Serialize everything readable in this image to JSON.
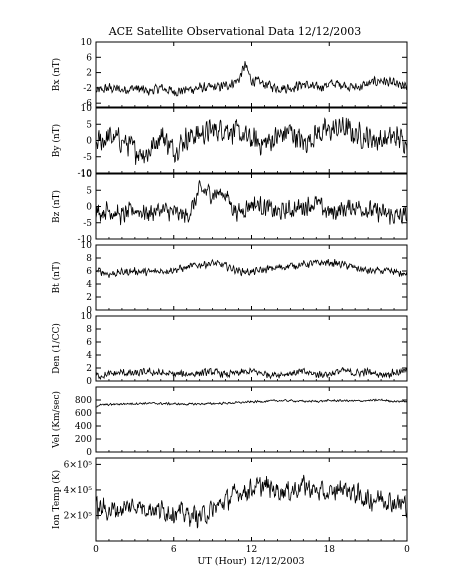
{
  "title": "ACE Satellite Observational Data   12/12/2003",
  "xlabel": "UT (Hour)  12/12/2003",
  "x_ticks": [
    "0",
    "6",
    "12",
    "18",
    "0"
  ],
  "chart_data": [
    {
      "type": "line",
      "ylabel": "Bx (nT)",
      "ylim": [
        -7,
        10
      ],
      "y_ticks": [
        "10",
        "6",
        "2",
        "-2",
        "-6"
      ],
      "y_tick_values": [
        10,
        6,
        2,
        -2,
        -6
      ],
      "x_hours": [
        0,
        1,
        2,
        3,
        4,
        5,
        6,
        7,
        8,
        9,
        10,
        11,
        11.5,
        12,
        13,
        14,
        15,
        16,
        17,
        18,
        19,
        20,
        21,
        22,
        23,
        24
      ],
      "values": [
        -3,
        -2,
        -2.5,
        -2,
        -3,
        -2,
        -3,
        -2.5,
        -2,
        -2,
        -1.5,
        0,
        4,
        0,
        -1,
        -2,
        -2,
        -1,
        -2,
        -1,
        -1,
        -2,
        -1,
        0,
        -1,
        -2
      ],
      "noise": 1.6
    },
    {
      "type": "line",
      "ylabel": "By (nT)",
      "ylim": [
        -10,
        10
      ],
      "y_ticks": [
        "10",
        "5",
        "0",
        "-5",
        "-10"
      ],
      "y_tick_values": [
        10,
        5,
        0,
        -5,
        -10
      ],
      "x_hours": [
        0,
        1,
        2,
        3,
        4,
        5,
        6,
        7,
        8,
        9,
        10,
        11,
        12,
        13,
        14,
        15,
        16,
        17,
        18,
        19,
        20,
        21,
        22,
        23,
        24
      ],
      "values": [
        -1,
        1,
        0,
        -3,
        -4,
        2,
        -3,
        1,
        2,
        3,
        4,
        2,
        0,
        -1,
        1,
        3,
        -1,
        2,
        3,
        4,
        2,
        1,
        0,
        1,
        0
      ],
      "noise": 4.5
    },
    {
      "type": "line",
      "ylabel": "Bz (nT)",
      "ylim": [
        -10,
        10
      ],
      "y_ticks": [
        "10",
        "5",
        "0",
        "-5",
        "-10"
      ],
      "y_tick_values": [
        10,
        5,
        0,
        -5,
        -10
      ],
      "x_hours": [
        0,
        1,
        2,
        3,
        4,
        5,
        6,
        7,
        7.5,
        8,
        9,
        10,
        10.5,
        11,
        12,
        13,
        14,
        15,
        16,
        17,
        18,
        19,
        20,
        21,
        22,
        23,
        24
      ],
      "values": [
        -2,
        -1,
        -3,
        -1,
        -2,
        -1,
        -2,
        -3,
        0,
        5,
        4,
        4,
        0,
        -2,
        1,
        0,
        -2,
        -1,
        0,
        1,
        -2,
        -1,
        0,
        -1,
        -2,
        -3,
        -3
      ],
      "noise": 3.5
    },
    {
      "type": "line",
      "ylabel": "Bt (nT)",
      "ylim": [
        0,
        10
      ],
      "y_ticks": [
        "10",
        "8",
        "6",
        "4",
        "2",
        "0"
      ],
      "y_tick_values": [
        10,
        8,
        6,
        4,
        2,
        0
      ],
      "x_hours": [
        0,
        0.3,
        1,
        2,
        3,
        4,
        5,
        6,
        7,
        8,
        9,
        10,
        11,
        12,
        13,
        14,
        15,
        16,
        17,
        18,
        19,
        20,
        21,
        22,
        23,
        24
      ],
      "values": [
        6,
        6,
        5.5,
        5.8,
        6,
        5.8,
        6,
        6.2,
        6.5,
        7,
        7.2,
        6.8,
        6,
        5.8,
        6.2,
        6.5,
        6.8,
        7,
        7.2,
        7.3,
        7,
        6.5,
        6,
        6,
        5.8,
        5.5
      ],
      "noise": 0.7
    },
    {
      "type": "line",
      "ylabel": "Den (1/CC)",
      "ylim": [
        0,
        10
      ],
      "y_ticks": [
        "10",
        "8",
        "6",
        "4",
        "2",
        "0"
      ],
      "y_tick_values": [
        10,
        8,
        6,
        4,
        2,
        0
      ],
      "x_hours": [
        0,
        1,
        2,
        3,
        4,
        5,
        6,
        7,
        8,
        9,
        10,
        11,
        12,
        13,
        14,
        15,
        16,
        17,
        18,
        19,
        20,
        21,
        22,
        23,
        24
      ],
      "values": [
        0.8,
        1.0,
        1.3,
        1.1,
        1.4,
        1.2,
        1.0,
        1.1,
        1.2,
        1.4,
        1.0,
        1.2,
        1.5,
        1.1,
        1.0,
        1.2,
        1.4,
        1.0,
        1.1,
        1.6,
        1.2,
        1.4,
        1.0,
        1.3,
        1.5
      ],
      "noise": 0.7
    },
    {
      "type": "line",
      "ylabel": "Vel (Km/sec)",
      "ylim": [
        0,
        1000
      ],
      "y_ticks": [
        "800",
        "600",
        "400",
        "200",
        "0"
      ],
      "y_tick_values": [
        800,
        600,
        400,
        200,
        0
      ],
      "x_hours": [
        0,
        0.2,
        1,
        2,
        3,
        4,
        5,
        6,
        7,
        8,
        9,
        10,
        11,
        12,
        13,
        14,
        15,
        16,
        17,
        18,
        19,
        20,
        21,
        22,
        23,
        24
      ],
      "values": [
        700,
        720,
        730,
        740,
        745,
        750,
        745,
        740,
        735,
        740,
        745,
        750,
        760,
        770,
        780,
        790,
        790,
        780,
        780,
        790,
        790,
        785,
        790,
        800,
        780,
        780
      ],
      "noise": 20
    },
    {
      "type": "line",
      "ylabel": "Ion Temp (K)",
      "ylim": [
        0,
        6.5
      ],
      "y_ticks": [
        "6×10⁵",
        "4×10⁵",
        "2×10⁵"
      ],
      "y_tick_values": [
        6,
        4,
        2
      ],
      "x_hours": [
        0,
        1,
        2,
        3,
        4,
        5,
        6,
        7,
        8,
        9,
        10,
        11,
        12,
        13,
        14,
        15,
        16,
        17,
        18,
        19,
        20,
        21,
        22,
        23,
        24
      ],
      "values": [
        2.6,
        2.4,
        2.5,
        2.8,
        2.6,
        2.4,
        2.3,
        2.1,
        1.9,
        2.4,
        3.2,
        3.8,
        4.1,
        4.3,
        4.0,
        3.9,
        4.4,
        3.9,
        3.6,
        4.2,
        3.7,
        3.2,
        3.4,
        3.0,
        2.8
      ],
      "noise": 1.0
    }
  ]
}
